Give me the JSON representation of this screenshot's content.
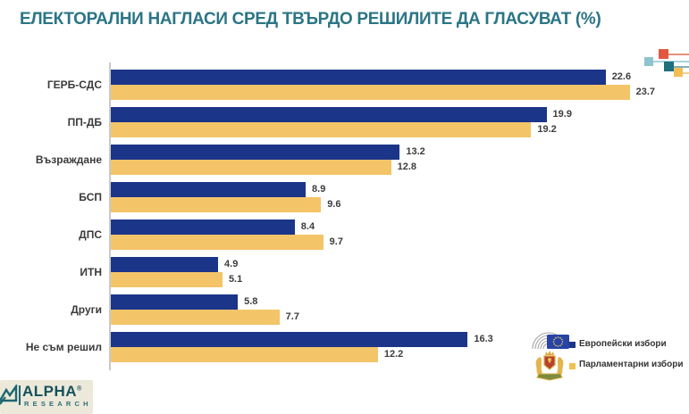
{
  "title": "ЕЛЕКТОРАЛНИ НАГЛАСИ СРЕД ТВЪРДО РЕШИЛИТЕ ДА ГЛАСУВАТ (%)",
  "chart_data": {
    "type": "bar",
    "orientation": "horizontal",
    "title": "ЕЛЕКТОРАЛНИ НАГЛАСИ СРЕД ТВЪРДО РЕШИЛИТЕ ДА ГЛАСУВАТ (%)",
    "categories": [
      "ГЕРБ-СДС",
      "ПП-ДБ",
      "Възраждане",
      "БСП",
      "ДПС",
      "ИТН",
      "Други",
      "Не съм решил"
    ],
    "series": [
      {
        "name": "Европейски избори",
        "color": "#1B3589",
        "values": [
          22.6,
          19.9,
          13.2,
          8.9,
          8.4,
          4.9,
          5.8,
          16.3
        ]
      },
      {
        "name": "Парламентарни избори",
        "color": "#F4C469",
        "values": [
          23.7,
          19.2,
          12.8,
          9.6,
          9.7,
          5.1,
          7.7,
          12.2
        ]
      }
    ],
    "xlim": [
      0,
      26
    ],
    "value_labels": true,
    "grid": false,
    "legend_position": "bottom-right"
  },
  "legend": {
    "items": [
      {
        "label": "Европейски избори",
        "color": "#1B3589",
        "icon": "eu-parliament-logo"
      },
      {
        "label": "Парламентарни избори",
        "color": "#F0C050",
        "icon": "bulgaria-coat-of-arms"
      }
    ]
  },
  "branding": {
    "logo_word": "ALPHA",
    "logo_reg": "®",
    "logo_sub": "RESEARCH"
  },
  "colors": {
    "title_teal": "#2B7586",
    "bar_blue": "#1B3589",
    "bar_yellow": "#F4C469",
    "pin_red": "#E25740",
    "pin_lightblue": "#8FC3CD",
    "pin_teal": "#1F6F7E",
    "pin_yellow": "#F1BE55"
  }
}
